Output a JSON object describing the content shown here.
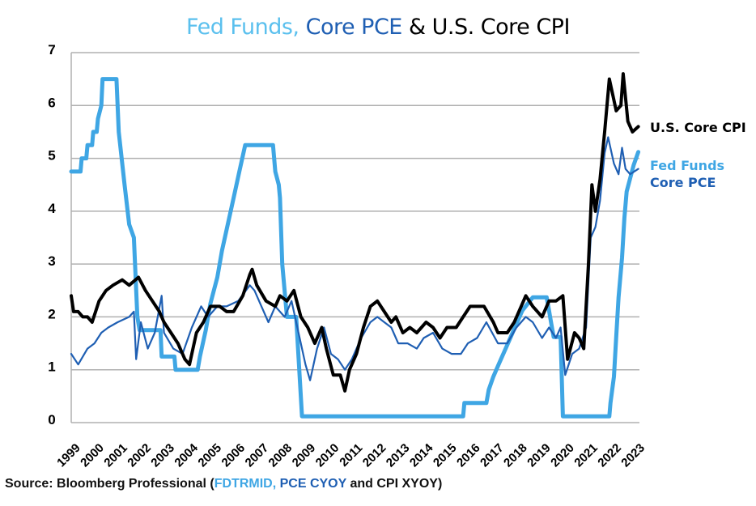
{
  "title": {
    "part1": "Fed Funds,",
    "part2": "Core PCE",
    "part3": "& U.S. Core CPI"
  },
  "source": {
    "prefix": "Source: Bloomberg Professional (",
    "code1": "FDTRMID,",
    "code2": "PCE CYOY",
    "suffix": "and CPI XYOY)"
  },
  "colors": {
    "fed_funds": "#3fa6e4",
    "core_pce": "#1f5fb3",
    "core_cpi": "#000000",
    "grid": "#b0b0b0"
  },
  "chart_data": {
    "type": "line",
    "title": "Fed Funds, Core PCE & U.S. Core CPI",
    "xlabel": "",
    "ylabel": "",
    "xlim": [
      1999,
      2023.5
    ],
    "ylim": [
      0,
      7
    ],
    "yticks": [
      "0",
      "1",
      "2",
      "3",
      "4",
      "5",
      "6",
      "7"
    ],
    "xticks": [
      "1999",
      "2000",
      "2001",
      "2002",
      "2003",
      "2004",
      "2005",
      "2006",
      "2007",
      "2008",
      "2009",
      "2010",
      "2011",
      "2012",
      "2013",
      "2014",
      "2015",
      "2016",
      "2017",
      "2018",
      "2019",
      "2020",
      "2021",
      "2022",
      "2023"
    ],
    "grid": true,
    "legend": "right",
    "series": [
      {
        "name": "U.S. Core CPI",
        "key": "core_cpi",
        "points": [
          [
            1999.0,
            2.4
          ],
          [
            1999.1,
            2.1
          ],
          [
            1999.3,
            2.1
          ],
          [
            1999.5,
            2.0
          ],
          [
            1999.7,
            2.0
          ],
          [
            1999.9,
            1.9
          ],
          [
            2000.2,
            2.3
          ],
          [
            2000.5,
            2.5
          ],
          [
            2000.8,
            2.6
          ],
          [
            2001.2,
            2.7
          ],
          [
            2001.5,
            2.6
          ],
          [
            2001.9,
            2.75
          ],
          [
            2002.2,
            2.5
          ],
          [
            2002.5,
            2.3
          ],
          [
            2002.8,
            2.1
          ],
          [
            2003.0,
            1.9
          ],
          [
            2003.3,
            1.7
          ],
          [
            2003.6,
            1.5
          ],
          [
            2003.9,
            1.2
          ],
          [
            2004.1,
            1.1
          ],
          [
            2004.4,
            1.7
          ],
          [
            2004.7,
            1.9
          ],
          [
            2005.0,
            2.2
          ],
          [
            2005.4,
            2.2
          ],
          [
            2005.7,
            2.1
          ],
          [
            2006.0,
            2.1
          ],
          [
            2006.4,
            2.4
          ],
          [
            2006.7,
            2.8
          ],
          [
            2006.8,
            2.9
          ],
          [
            2007.0,
            2.6
          ],
          [
            2007.4,
            2.3
          ],
          [
            2007.8,
            2.2
          ],
          [
            2008.0,
            2.4
          ],
          [
            2008.3,
            2.3
          ],
          [
            2008.6,
            2.5
          ],
          [
            2008.9,
            2.0
          ],
          [
            2009.2,
            1.8
          ],
          [
            2009.5,
            1.5
          ],
          [
            2009.8,
            1.8
          ],
          [
            2010.0,
            1.4
          ],
          [
            2010.3,
            0.9
          ],
          [
            2010.6,
            0.9
          ],
          [
            2010.8,
            0.6
          ],
          [
            2011.0,
            1.0
          ],
          [
            2011.3,
            1.3
          ],
          [
            2011.6,
            1.8
          ],
          [
            2011.9,
            2.2
          ],
          [
            2012.2,
            2.3
          ],
          [
            2012.5,
            2.1
          ],
          [
            2012.8,
            1.9
          ],
          [
            2013.0,
            2.0
          ],
          [
            2013.3,
            1.7
          ],
          [
            2013.6,
            1.8
          ],
          [
            2013.9,
            1.7
          ],
          [
            2014.3,
            1.9
          ],
          [
            2014.6,
            1.8
          ],
          [
            2014.9,
            1.6
          ],
          [
            2015.2,
            1.8
          ],
          [
            2015.6,
            1.8
          ],
          [
            2015.9,
            2.0
          ],
          [
            2016.2,
            2.2
          ],
          [
            2016.5,
            2.2
          ],
          [
            2016.8,
            2.2
          ],
          [
            2017.2,
            1.9
          ],
          [
            2017.4,
            1.7
          ],
          [
            2017.8,
            1.7
          ],
          [
            2018.1,
            1.9
          ],
          [
            2018.4,
            2.2
          ],
          [
            2018.6,
            2.4
          ],
          [
            2018.9,
            2.2
          ],
          [
            2019.3,
            2.0
          ],
          [
            2019.6,
            2.3
          ],
          [
            2019.9,
            2.3
          ],
          [
            2020.2,
            2.4
          ],
          [
            2020.4,
            1.2
          ],
          [
            2020.7,
            1.7
          ],
          [
            2020.9,
            1.6
          ],
          [
            2021.1,
            1.4
          ],
          [
            2021.3,
            3.0
          ],
          [
            2021.45,
            4.5
          ],
          [
            2021.6,
            4.0
          ],
          [
            2021.8,
            4.6
          ],
          [
            2022.0,
            5.5
          ],
          [
            2022.2,
            6.5
          ],
          [
            2022.5,
            5.9
          ],
          [
            2022.7,
            6.0
          ],
          [
            2022.8,
            6.6
          ],
          [
            2023.0,
            5.7
          ],
          [
            2023.2,
            5.5
          ],
          [
            2023.45,
            5.6
          ]
        ]
      },
      {
        "name": "Fed Funds",
        "key": "fed_funds",
        "points": [
          [
            1999.0,
            4.75
          ],
          [
            1999.4,
            4.75
          ],
          [
            1999.45,
            5.0
          ],
          [
            1999.65,
            5.0
          ],
          [
            1999.7,
            5.25
          ],
          [
            1999.9,
            5.25
          ],
          [
            1999.95,
            5.5
          ],
          [
            2000.1,
            5.5
          ],
          [
            2000.15,
            5.75
          ],
          [
            2000.3,
            6.0
          ],
          [
            2000.35,
            6.5
          ],
          [
            2000.95,
            6.5
          ],
          [
            2001.05,
            5.5
          ],
          [
            2001.3,
            4.5
          ],
          [
            2001.5,
            3.75
          ],
          [
            2001.7,
            3.5
          ],
          [
            2001.85,
            2.0
          ],
          [
            2001.95,
            1.75
          ],
          [
            2002.85,
            1.75
          ],
          [
            2002.9,
            1.25
          ],
          [
            2003.45,
            1.25
          ],
          [
            2003.5,
            1.0
          ],
          [
            2004.45,
            1.0
          ],
          [
            2004.55,
            1.25
          ],
          [
            2004.8,
            1.75
          ],
          [
            2005.0,
            2.25
          ],
          [
            2005.3,
            2.75
          ],
          [
            2005.5,
            3.25
          ],
          [
            2005.75,
            3.75
          ],
          [
            2006.0,
            4.25
          ],
          [
            2006.25,
            4.75
          ],
          [
            2006.5,
            5.25
          ],
          [
            2007.7,
            5.25
          ],
          [
            2007.8,
            4.75
          ],
          [
            2007.95,
            4.5
          ],
          [
            2008.0,
            4.25
          ],
          [
            2008.1,
            3.0
          ],
          [
            2008.3,
            2.0
          ],
          [
            2008.7,
            2.0
          ],
          [
            2008.95,
            0.12
          ],
          [
            2015.9,
            0.12
          ],
          [
            2015.95,
            0.37
          ],
          [
            2016.9,
            0.37
          ],
          [
            2017.0,
            0.62
          ],
          [
            2017.2,
            0.87
          ],
          [
            2017.45,
            1.12
          ],
          [
            2017.7,
            1.37
          ],
          [
            2017.95,
            1.62
          ],
          [
            2018.2,
            1.87
          ],
          [
            2018.45,
            2.12
          ],
          [
            2018.9,
            2.37
          ],
          [
            2019.5,
            2.37
          ],
          [
            2019.6,
            2.12
          ],
          [
            2019.7,
            1.87
          ],
          [
            2019.8,
            1.62
          ],
          [
            2020.1,
            1.62
          ],
          [
            2020.2,
            0.12
          ],
          [
            2022.2,
            0.12
          ],
          [
            2022.25,
            0.37
          ],
          [
            2022.4,
            0.87
          ],
          [
            2022.5,
            1.62
          ],
          [
            2022.6,
            2.37
          ],
          [
            2022.75,
            3.12
          ],
          [
            2022.85,
            3.87
          ],
          [
            2022.95,
            4.37
          ],
          [
            2023.1,
            4.62
          ],
          [
            2023.25,
            4.87
          ],
          [
            2023.45,
            5.12
          ]
        ]
      },
      {
        "name": "Core PCE",
        "key": "core_pce",
        "points": [
          [
            1999.0,
            1.3
          ],
          [
            1999.3,
            1.1
          ],
          [
            1999.7,
            1.4
          ],
          [
            2000.0,
            1.5
          ],
          [
            2000.3,
            1.7
          ],
          [
            2000.6,
            1.8
          ],
          [
            2001.0,
            1.9
          ],
          [
            2001.5,
            2.0
          ],
          [
            2001.7,
            2.1
          ],
          [
            2001.8,
            1.2
          ],
          [
            2002.0,
            1.9
          ],
          [
            2002.3,
            1.4
          ],
          [
            2002.6,
            1.7
          ],
          [
            2002.9,
            2.4
          ],
          [
            2003.0,
            1.7
          ],
          [
            2003.4,
            1.4
          ],
          [
            2003.8,
            1.3
          ],
          [
            2004.2,
            1.8
          ],
          [
            2004.6,
            2.2
          ],
          [
            2004.9,
            2.0
          ],
          [
            2005.3,
            2.2
          ],
          [
            2005.7,
            2.2
          ],
          [
            2006.2,
            2.3
          ],
          [
            2006.7,
            2.6
          ],
          [
            2006.9,
            2.5
          ],
          [
            2007.2,
            2.2
          ],
          [
            2007.5,
            1.9
          ],
          [
            2007.8,
            2.2
          ],
          [
            2008.2,
            2.0
          ],
          [
            2008.5,
            2.3
          ],
          [
            2008.8,
            1.7
          ],
          [
            2009.1,
            1.1
          ],
          [
            2009.3,
            0.8
          ],
          [
            2009.6,
            1.4
          ],
          [
            2009.9,
            1.8
          ],
          [
            2010.2,
            1.3
          ],
          [
            2010.5,
            1.2
          ],
          [
            2010.8,
            1.0
          ],
          [
            2011.1,
            1.2
          ],
          [
            2011.5,
            1.6
          ],
          [
            2011.9,
            1.9
          ],
          [
            2012.2,
            2.0
          ],
          [
            2012.5,
            1.9
          ],
          [
            2012.8,
            1.8
          ],
          [
            2013.1,
            1.5
          ],
          [
            2013.5,
            1.5
          ],
          [
            2013.9,
            1.4
          ],
          [
            2014.2,
            1.6
          ],
          [
            2014.6,
            1.7
          ],
          [
            2015.0,
            1.4
          ],
          [
            2015.4,
            1.3
          ],
          [
            2015.8,
            1.3
          ],
          [
            2016.1,
            1.5
          ],
          [
            2016.5,
            1.6
          ],
          [
            2016.9,
            1.9
          ],
          [
            2017.4,
            1.5
          ],
          [
            2017.8,
            1.5
          ],
          [
            2018.2,
            1.8
          ],
          [
            2018.6,
            2.0
          ],
          [
            2018.9,
            1.9
          ],
          [
            2019.3,
            1.6
          ],
          [
            2019.6,
            1.8
          ],
          [
            2019.9,
            1.6
          ],
          [
            2020.1,
            1.8
          ],
          [
            2020.3,
            0.9
          ],
          [
            2020.6,
            1.3
          ],
          [
            2020.9,
            1.4
          ],
          [
            2021.2,
            1.8
          ],
          [
            2021.4,
            3.5
          ],
          [
            2021.6,
            3.7
          ],
          [
            2021.8,
            4.2
          ],
          [
            2022.0,
            5.1
          ],
          [
            2022.15,
            5.4
          ],
          [
            2022.4,
            4.9
          ],
          [
            2022.6,
            4.7
          ],
          [
            2022.75,
            5.2
          ],
          [
            2022.9,
            4.8
          ],
          [
            2023.1,
            4.7
          ],
          [
            2023.45,
            4.8
          ]
        ]
      }
    ]
  }
}
